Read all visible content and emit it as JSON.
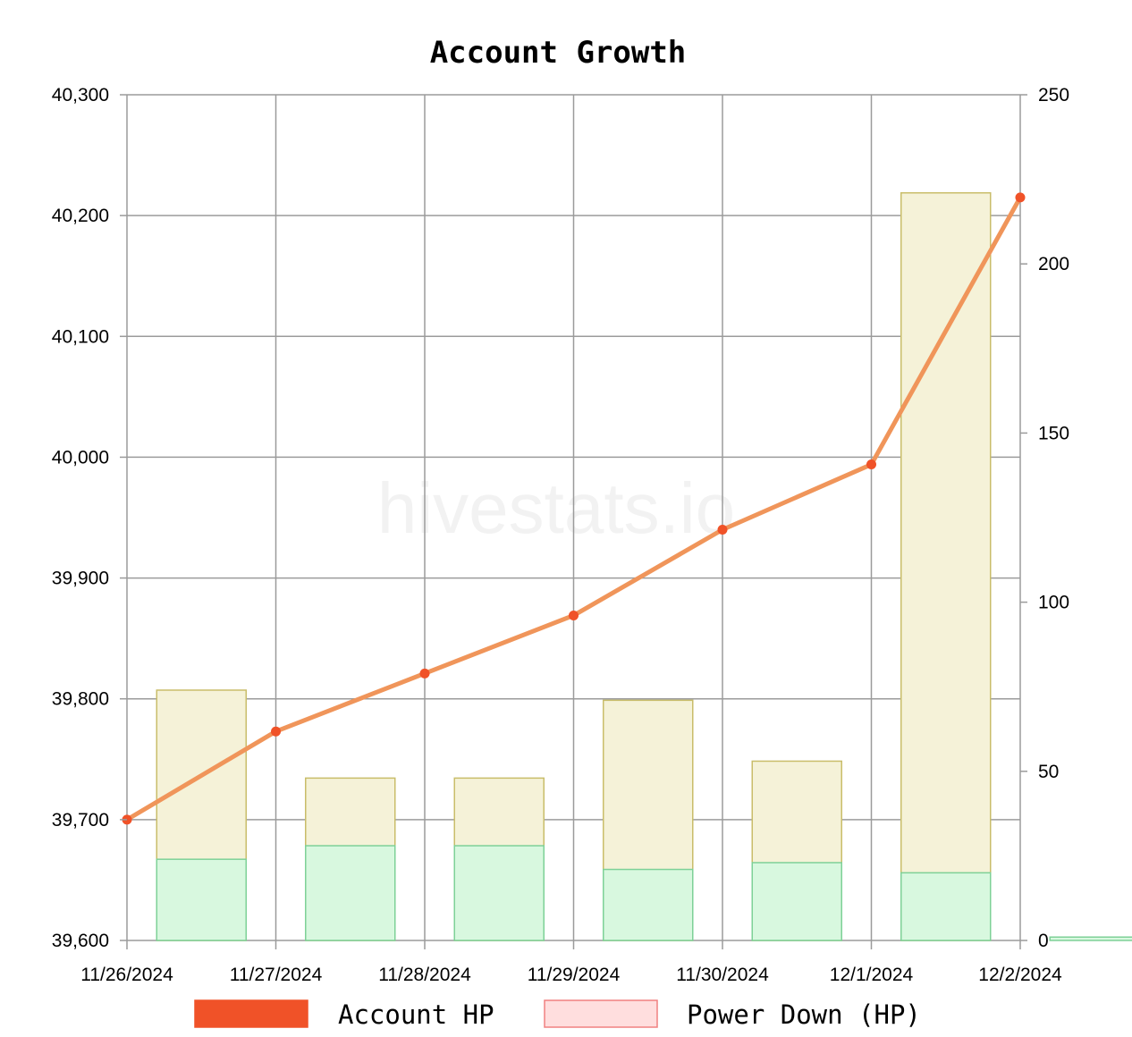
{
  "chart_data": {
    "type": "bar",
    "title": "Account Growth",
    "watermark": "hivestats.io",
    "x": [
      "11/26/2024",
      "11/27/2024",
      "11/28/2024",
      "11/29/2024",
      "11/30/2024",
      "12/1/2024",
      "12/2/2024"
    ],
    "y_left": {
      "ticks": [
        "39,600",
        "39,700",
        "39,800",
        "39,900",
        "40,000",
        "40,100",
        "40,200",
        "40,300"
      ],
      "ylim": [
        39600,
        40300
      ]
    },
    "y_right": {
      "ticks": [
        "0",
        "50",
        "100",
        "150",
        "200",
        "250"
      ],
      "ylim": [
        0,
        250
      ]
    },
    "series": [
      {
        "name": "Account HP",
        "kind": "line",
        "axis": "left",
        "color": "#f05228",
        "line_color": "#f0955a",
        "values": [
          39700,
          39773,
          39821,
          39869,
          39940,
          39994,
          40215
        ]
      },
      {
        "kind": "bar",
        "axis": "right",
        "fill": "#f5f2d8",
        "stroke": "#c9bd6a",
        "values": [
          74,
          48,
          48,
          71,
          53,
          221,
          null
        ]
      },
      {
        "kind": "bar",
        "axis": "right",
        "fill": "#d8f8df",
        "stroke": "#7ed197",
        "values": [
          24,
          28,
          28,
          21,
          23,
          20,
          1
        ]
      }
    ],
    "legend": [
      {
        "label": "Account HP",
        "color": "#f05228",
        "border": "#f05228"
      },
      {
        "label": "Power Down (HP)",
        "color": "#ffdede",
        "border": "#f08080"
      }
    ],
    "legend_position": "bottom",
    "grid": true
  }
}
